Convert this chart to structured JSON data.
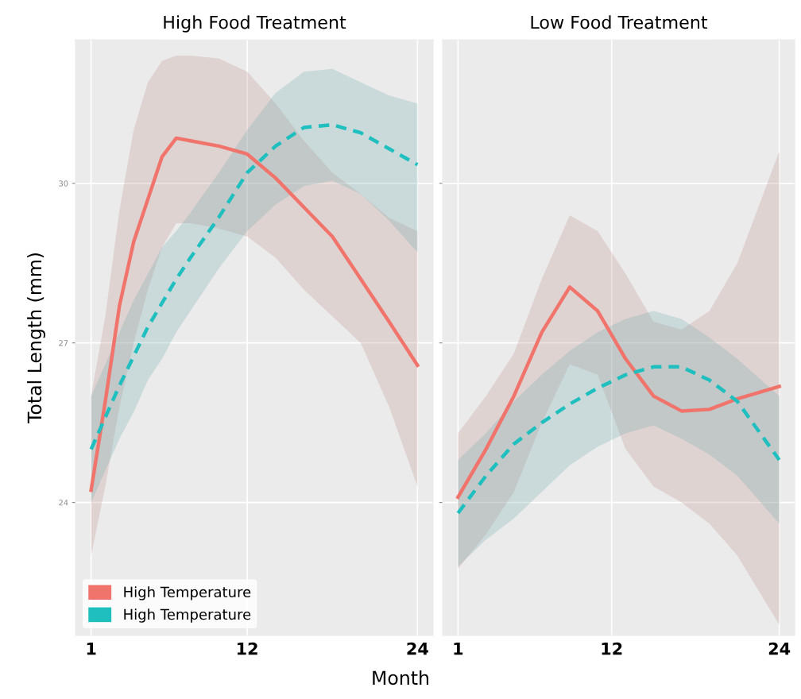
{
  "chart_data": [
    {
      "type": "line",
      "title": "High Food Treatment",
      "ylabel": "Total Length (mm)",
      "xlabel": "Month",
      "xlim": [
        -0.1,
        25.1
      ],
      "ylim": [
        21.5,
        32.7
      ],
      "xticks": [
        1,
        12,
        24
      ],
      "yticks": [
        24,
        27,
        30
      ],
      "grid": true,
      "legend": "bottom left",
      "series": [
        {
          "name": "High Temperature",
          "color": "#f0746b",
          "line_style": "solid",
          "x": [
            1,
            2,
            3,
            4,
            5,
            6,
            7,
            8,
            10,
            12,
            14,
            16,
            18,
            20,
            22,
            24
          ],
          "values": [
            24.23,
            25.9,
            27.7,
            28.9,
            29.7,
            30.5,
            30.85,
            30.8,
            30.7,
            30.55,
            30.1,
            29.55,
            29.0,
            28.2,
            27.4,
            26.58
          ],
          "upper": [
            26.0,
            27.5,
            29.5,
            31.0,
            31.9,
            32.3,
            32.4,
            32.4,
            32.35,
            32.1,
            31.5,
            30.8,
            30.2,
            29.8,
            29.35,
            29.1
          ],
          "lower": [
            23.0,
            24.3,
            25.8,
            27.0,
            28.0,
            28.8,
            29.25,
            29.25,
            29.15,
            29.0,
            28.6,
            28.0,
            27.5,
            27.0,
            25.8,
            24.3
          ]
        },
        {
          "name": "High Temperature",
          "color": "#1fbfbf",
          "line_style": "dashed",
          "x": [
            1,
            2,
            3,
            4,
            5,
            6,
            7,
            8,
            10,
            12,
            14,
            16,
            18,
            20,
            22,
            24
          ],
          "values": [
            25.0,
            25.6,
            26.2,
            26.75,
            27.3,
            27.75,
            28.2,
            28.6,
            29.36,
            30.2,
            30.7,
            31.05,
            31.1,
            30.95,
            30.65,
            30.35
          ],
          "upper": [
            26.0,
            26.6,
            27.2,
            27.8,
            28.3,
            28.8,
            29.1,
            29.45,
            30.2,
            31.0,
            31.7,
            32.1,
            32.15,
            31.9,
            31.65,
            31.5
          ],
          "lower": [
            24.0,
            24.6,
            25.2,
            25.7,
            26.3,
            26.7,
            27.2,
            27.6,
            28.4,
            29.1,
            29.6,
            29.95,
            30.05,
            29.8,
            29.3,
            28.7
          ]
        }
      ]
    },
    {
      "type": "line",
      "title": "Low Food Treatment",
      "xlim": [
        -0.1,
        25.1
      ],
      "ylim": [
        21.5,
        32.7
      ],
      "xticks": [
        1,
        12,
        24
      ],
      "yticks": [
        24,
        27,
        30
      ],
      "grid": true,
      "tick_labels": "x",
      "series": [
        {
          "color": "#f0746b",
          "line_style": "solid",
          "x": [
            1,
            3,
            5,
            7,
            9,
            11,
            13,
            15,
            17,
            19,
            21,
            24
          ],
          "values": [
            24.1,
            25.0,
            26.0,
            27.2,
            28.05,
            27.6,
            26.7,
            26.0,
            25.72,
            25.75,
            25.95,
            26.18
          ],
          "upper": [
            25.3,
            26.0,
            26.8,
            28.2,
            29.4,
            29.1,
            28.3,
            27.4,
            27.25,
            27.6,
            28.5,
            30.6
          ],
          "lower": [
            22.75,
            23.4,
            24.2,
            25.5,
            26.6,
            26.4,
            25.0,
            24.3,
            24.0,
            23.6,
            23.0,
            21.7
          ]
        },
        {
          "color": "#1fbfbf",
          "line_style": "dashed",
          "x": [
            1,
            3,
            5,
            7,
            9,
            11,
            13,
            15,
            17,
            19,
            21,
            24
          ],
          "values": [
            23.8,
            24.5,
            25.1,
            25.5,
            25.85,
            26.15,
            26.4,
            26.55,
            26.55,
            26.3,
            25.9,
            24.8
          ],
          "upper": [
            24.8,
            25.3,
            25.9,
            26.4,
            26.85,
            27.2,
            27.45,
            27.6,
            27.45,
            27.1,
            26.7,
            26.0
          ],
          "lower": [
            22.8,
            23.3,
            23.7,
            24.2,
            24.7,
            25.05,
            25.3,
            25.45,
            25.2,
            24.9,
            24.5,
            23.6
          ]
        }
      ]
    }
  ]
}
